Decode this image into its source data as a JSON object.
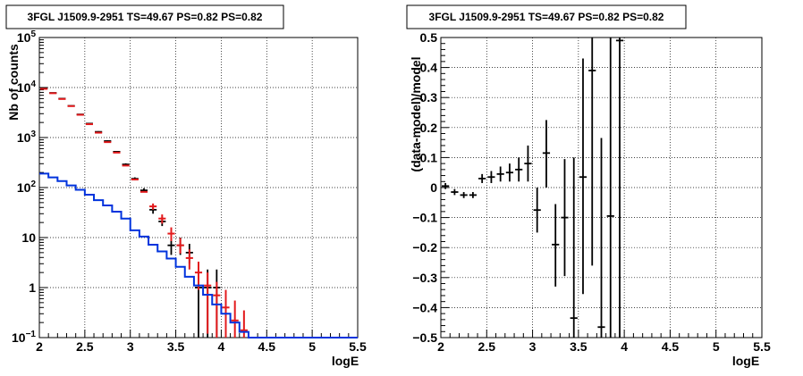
{
  "colors": {
    "data": "#000000",
    "model": "#e31a1c",
    "component": "#0033dd"
  },
  "chart_data": [
    {
      "type": "scatter",
      "title": "3FGL J1509.9-2951 TS=49.67 PS=0.82 PS=0.82",
      "xlabel": "logE",
      "ylabel": "Nb of counts",
      "xlim": [
        2,
        5.5
      ],
      "ylim": [
        0.1,
        100000
      ],
      "yscale": "log",
      "grid": true,
      "x_ticks": [
        "2",
        "2.5",
        "3",
        "3.5",
        "4",
        "4.5",
        "5",
        "5.5"
      ],
      "y_ticks": [
        "10^-1",
        "1",
        "10",
        "10^2",
        "10^3",
        "10^4",
        "10^5"
      ],
      "y_tick_labels": [
        {
          "value": 0.1,
          "base": "10",
          "exp": "−1"
        },
        {
          "value": 1,
          "base": "1",
          "exp": ""
        },
        {
          "value": 10,
          "base": "10",
          "exp": ""
        },
        {
          "value": 100,
          "base": "10",
          "exp": "2"
        },
        {
          "value": 1000,
          "base": "10",
          "exp": "3"
        },
        {
          "value": 10000,
          "base": "10",
          "exp": "4"
        },
        {
          "value": 100000,
          "base": "10",
          "exp": "5"
        }
      ],
      "series": [
        {
          "kind": "data",
          "color": "#000000",
          "points": [
            {
              "x": 2.05,
              "y": 9500,
              "lo": 9300,
              "hi": 9700
            },
            {
              "x": 2.15,
              "y": 7800,
              "lo": 7650,
              "hi": 7950
            },
            {
              "x": 2.25,
              "y": 6000,
              "lo": 5880,
              "hi": 6120
            },
            {
              "x": 2.35,
              "y": 4300,
              "lo": 4200,
              "hi": 4400
            },
            {
              "x": 2.45,
              "y": 2900,
              "lo": 2830,
              "hi": 2970
            },
            {
              "x": 2.55,
              "y": 1900,
              "lo": 1850,
              "hi": 1950
            },
            {
              "x": 2.65,
              "y": 1300,
              "lo": 1260,
              "hi": 1340
            },
            {
              "x": 2.75,
              "y": 850,
              "lo": 820,
              "hi": 880
            },
            {
              "x": 2.85,
              "y": 520,
              "lo": 500,
              "hi": 540
            },
            {
              "x": 2.95,
              "y": 290,
              "lo": 275,
              "hi": 305
            },
            {
              "x": 3.05,
              "y": 150,
              "lo": 140,
              "hi": 160
            },
            {
              "x": 3.15,
              "y": 88,
              "lo": 80,
              "hi": 97
            },
            {
              "x": 3.25,
              "y": 36,
              "lo": 30,
              "hi": 42
            },
            {
              "x": 3.35,
              "y": 21,
              "lo": 17,
              "hi": 26
            },
            {
              "x": 3.45,
              "y": 7,
              "lo": 4.5,
              "hi": 10
            },
            {
              "x": 3.55,
              "y": 7,
              "lo": 4.5,
              "hi": 10
            },
            {
              "x": 3.65,
              "y": 5,
              "lo": 3,
              "hi": 7.5
            },
            {
              "x": 3.75,
              "y": 1,
              "lo": 0.1,
              "hi": 2.3
            },
            {
              "x": 3.85,
              "y": 1,
              "lo": 0.1,
              "hi": 2.3
            },
            {
              "x": 3.95,
              "y": 1,
              "lo": 0.1,
              "hi": 2.3
            }
          ]
        },
        {
          "kind": "model",
          "color": "#e31a1c",
          "points": [
            {
              "x": 2.05,
              "y": 9400,
              "lo": 9400,
              "hi": 9400
            },
            {
              "x": 2.15,
              "y": 7700,
              "lo": 7700,
              "hi": 7700
            },
            {
              "x": 2.25,
              "y": 5900,
              "lo": 5900,
              "hi": 5900
            },
            {
              "x": 2.35,
              "y": 4250,
              "lo": 4250,
              "hi": 4250
            },
            {
              "x": 2.45,
              "y": 2850,
              "lo": 2850,
              "hi": 2850
            },
            {
              "x": 2.55,
              "y": 1850,
              "lo": 1850,
              "hi": 1850
            },
            {
              "x": 2.65,
              "y": 1250,
              "lo": 1250,
              "hi": 1250
            },
            {
              "x": 2.75,
              "y": 810,
              "lo": 810,
              "hi": 810
            },
            {
              "x": 2.85,
              "y": 500,
              "lo": 500,
              "hi": 500
            },
            {
              "x": 2.95,
              "y": 275,
              "lo": 275,
              "hi": 275
            },
            {
              "x": 3.05,
              "y": 145,
              "lo": 145,
              "hi": 145
            },
            {
              "x": 3.15,
              "y": 82,
              "lo": 82,
              "hi": 82
            },
            {
              "x": 3.25,
              "y": 42,
              "lo": 36,
              "hi": 48
            },
            {
              "x": 3.35,
              "y": 24,
              "lo": 19,
              "hi": 29
            },
            {
              "x": 3.45,
              "y": 12,
              "lo": 8.5,
              "hi": 16
            },
            {
              "x": 3.55,
              "y": 7,
              "lo": 4.8,
              "hi": 9.8
            },
            {
              "x": 3.65,
              "y": 3.9,
              "lo": 2.3,
              "hi": 5.8
            },
            {
              "x": 3.75,
              "y": 2,
              "lo": 0.9,
              "hi": 3.3
            },
            {
              "x": 3.85,
              "y": 1.1,
              "lo": 0.12,
              "hi": 2.0
            },
            {
              "x": 3.95,
              "y": 0.7,
              "lo": 0.1,
              "hi": 1.3
            },
            {
              "x": 4.05,
              "y": 0.4,
              "lo": 0.1,
              "hi": 0.9
            },
            {
              "x": 4.15,
              "y": 0.22,
              "lo": 0.1,
              "hi": 0.55
            },
            {
              "x": 4.25,
              "y": 0.14,
              "lo": 0.1,
              "hi": 0.35
            }
          ]
        },
        {
          "kind": "component",
          "color": "#0033dd",
          "step_edges": [
            2.0,
            2.1,
            2.2,
            2.3,
            2.4,
            2.5,
            2.6,
            2.7,
            2.8,
            2.9,
            3.0,
            3.1,
            3.2,
            3.3,
            3.4,
            3.5,
            3.6,
            3.7,
            3.8,
            3.9,
            4.0,
            4.1,
            4.2,
            4.3,
            4.4,
            4.5,
            4.6,
            4.7,
            4.8,
            4.9,
            5.0,
            5.1,
            5.2,
            5.3,
            5.4,
            5.5
          ],
          "step_values": [
            190,
            160,
            135,
            110,
            90,
            72,
            56,
            44,
            33,
            24,
            14,
            10.5,
            7.2,
            5.3,
            3.8,
            2.6,
            1.65,
            1.1,
            0.72,
            0.46,
            0.3,
            0.2,
            0.13,
            0.1,
            0.1,
            0.1,
            0.1,
            0.1,
            0.1,
            0.1,
            0.1,
            0.1,
            0.1,
            0.1,
            0.1
          ]
        }
      ]
    },
    {
      "type": "scatter",
      "title": "3FGL J1509.9-2951 TS=49.67 PS=0.82 PS=0.82",
      "xlabel": "logE",
      "ylabel": "(data-model)/model",
      "xlim": [
        2,
        5.5
      ],
      "ylim": [
        -0.5,
        0.5
      ],
      "grid": true,
      "x_ticks": [
        "2",
        "2.5",
        "3",
        "3.5",
        "4",
        "4.5",
        "5",
        "5.5"
      ],
      "y_ticks": [
        "−0.5",
        "−0.4",
        "−0.3",
        "−0.2",
        "−0.1",
        "0",
        "0.1",
        "0.2",
        "0.3",
        "0.4",
        "0.5"
      ],
      "series": [
        {
          "kind": "residual",
          "color": "#000000",
          "points": [
            {
              "x": 2.05,
              "y": 0.005,
              "lo": -0.005,
              "hi": 0.015
            },
            {
              "x": 2.15,
              "y": -0.015,
              "lo": -0.025,
              "hi": -0.005
            },
            {
              "x": 2.25,
              "y": -0.025,
              "lo": -0.035,
              "hi": -0.015
            },
            {
              "x": 2.35,
              "y": -0.025,
              "lo": -0.035,
              "hi": -0.015
            },
            {
              "x": 2.45,
              "y": 0.03,
              "lo": 0.015,
              "hi": 0.045
            },
            {
              "x": 2.55,
              "y": 0.035,
              "lo": 0.015,
              "hi": 0.055
            },
            {
              "x": 2.65,
              "y": 0.045,
              "lo": 0.02,
              "hi": 0.07
            },
            {
              "x": 2.75,
              "y": 0.05,
              "lo": 0.02,
              "hi": 0.08
            },
            {
              "x": 2.85,
              "y": 0.06,
              "lo": 0.02,
              "hi": 0.1
            },
            {
              "x": 2.95,
              "y": 0.08,
              "lo": 0.02,
              "hi": 0.14
            },
            {
              "x": 3.05,
              "y": -0.075,
              "lo": -0.15,
              "hi": 0.0
            },
            {
              "x": 3.15,
              "y": 0.115,
              "lo": 0.0,
              "hi": 0.225
            },
            {
              "x": 3.25,
              "y": -0.19,
              "lo": -0.33,
              "hi": -0.055
            },
            {
              "x": 3.35,
              "y": -0.1,
              "lo": -0.295,
              "hi": 0.095
            },
            {
              "x": 3.45,
              "y": -0.435,
              "lo": -0.5,
              "hi": 0.1
            },
            {
              "x": 3.55,
              "y": 0.035,
              "lo": -0.355,
              "hi": 0.43
            },
            {
              "x": 3.65,
              "y": 0.39,
              "lo": -0.26,
              "hi": 0.5
            },
            {
              "x": 3.75,
              "y": -0.465,
              "lo": -0.5,
              "hi": 0.165
            },
            {
              "x": 3.85,
              "y": -0.095,
              "lo": -0.5,
              "hi": 0.5
            },
            {
              "x": 3.95,
              "y": 0.49,
              "lo": -0.5,
              "hi": 0.5
            }
          ]
        }
      ]
    }
  ]
}
